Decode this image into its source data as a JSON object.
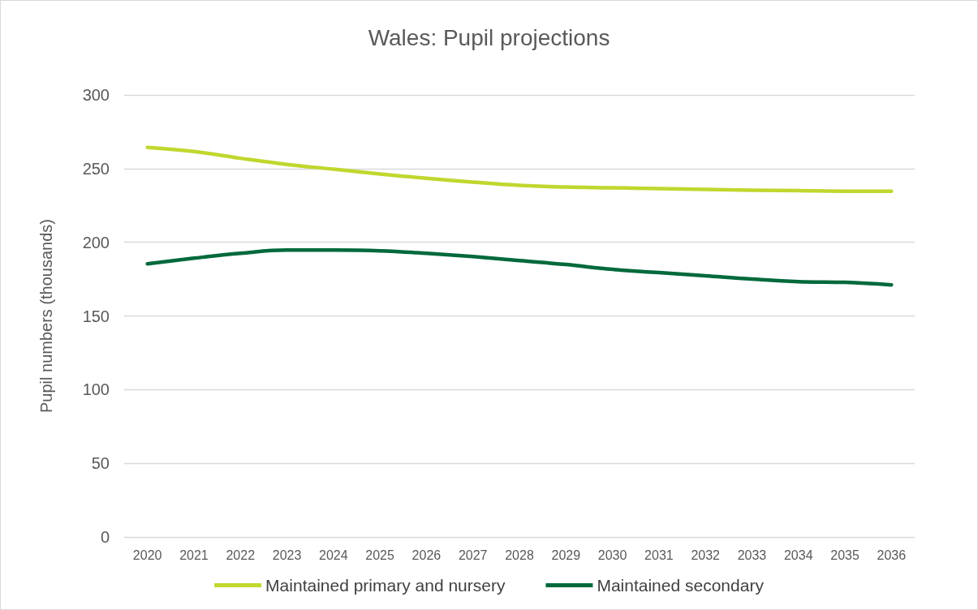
{
  "chart_data": {
    "type": "line",
    "title": "Wales: Pupil projections",
    "ylabel": "Pupil numbers (thousands)",
    "categories": [
      "2020",
      "2021",
      "2022",
      "2023",
      "2024",
      "2025",
      "2026",
      "2027",
      "2028",
      "2029",
      "2030",
      "2031",
      "2032",
      "2033",
      "2034",
      "2035",
      "2036"
    ],
    "series": [
      {
        "name": "Maintained primary and nursery",
        "color": "#c0d72e",
        "values": [
          264.4,
          261.6,
          257,
          252.8,
          249.6,
          246.3,
          243.5,
          240.8,
          238.6,
          237.5,
          237,
          236.4,
          235.9,
          235.3,
          235,
          234.7,
          234.7
        ]
      },
      {
        "name": "Maintained secondary",
        "color": "#00693c",
        "values": [
          185.4,
          189.2,
          192.5,
          194.7,
          194.7,
          194.2,
          192.5,
          190.3,
          187.6,
          184.9,
          181.6,
          179.4,
          177.2,
          175,
          173.3,
          172.8,
          171.1
        ]
      }
    ],
    "ylim": [
      0,
      300
    ],
    "yticks": [
      0,
      50,
      100,
      150,
      200,
      250,
      300
    ],
    "grid": "y",
    "legend": "bottom",
    "marker": "none",
    "line_style": "solid"
  }
}
